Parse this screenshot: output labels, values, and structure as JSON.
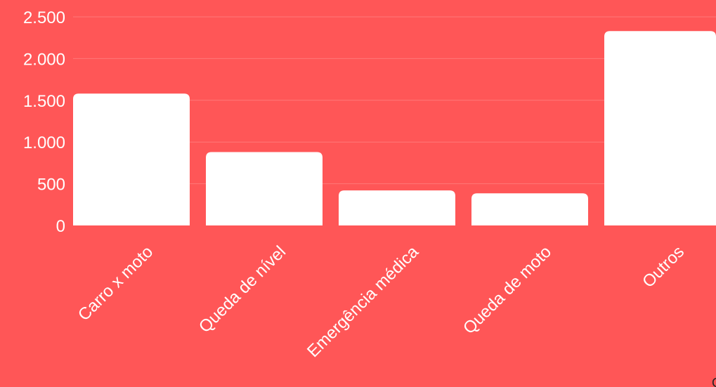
{
  "colors": {
    "background": "#ff5657",
    "bar": "#ffffff",
    "text": "#ffffff",
    "gridline": "#ff7879",
    "credit_text": "#222222"
  },
  "chart_data": {
    "type": "bar",
    "title": "",
    "xlabel": "",
    "ylabel": "",
    "categories": [
      "Carro x moto",
      "Queda de nível",
      "Emergência médica",
      "Queda de moto",
      "Outros"
    ],
    "values": [
      1580,
      880,
      420,
      385,
      2330
    ],
    "ylim": [
      0,
      2500
    ],
    "yticks": [
      0,
      500,
      1000,
      1500,
      2000,
      2500
    ],
    "ytick_labels": [
      "0",
      "500",
      "1.000",
      "1.500",
      "2.000",
      "2.500"
    ],
    "grid": true,
    "legend": "none"
  },
  "footer": {
    "credit_partial": "G"
  }
}
